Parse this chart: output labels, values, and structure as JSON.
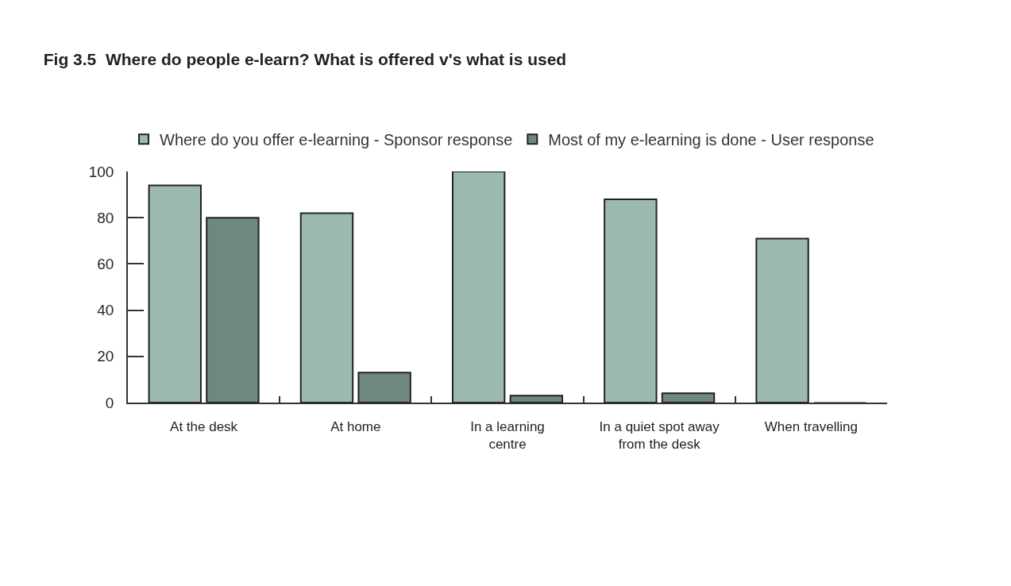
{
  "chart_data": {
    "type": "bar",
    "title": "Fig 3.5  Where do people e-learn? What is offered v's what is used",
    "categories": [
      "At the desk",
      "At home",
      "In a learning\ncentre",
      "In a quiet spot away\nfrom the desk",
      "When travelling"
    ],
    "series": [
      {
        "name": "Where do you offer e-learning - Sponsor response",
        "color": "#9cbab2",
        "values": [
          94,
          82,
          100,
          88,
          71
        ]
      },
      {
        "name": "Most of my e-learning is done - User response",
        "color": "#6e8880",
        "values": [
          80,
          13,
          3,
          4,
          0
        ]
      }
    ],
    "ylim": [
      0,
      100
    ],
    "yticks": [
      0,
      20,
      40,
      60,
      80,
      100
    ],
    "grid": false,
    "legend": "top"
  }
}
